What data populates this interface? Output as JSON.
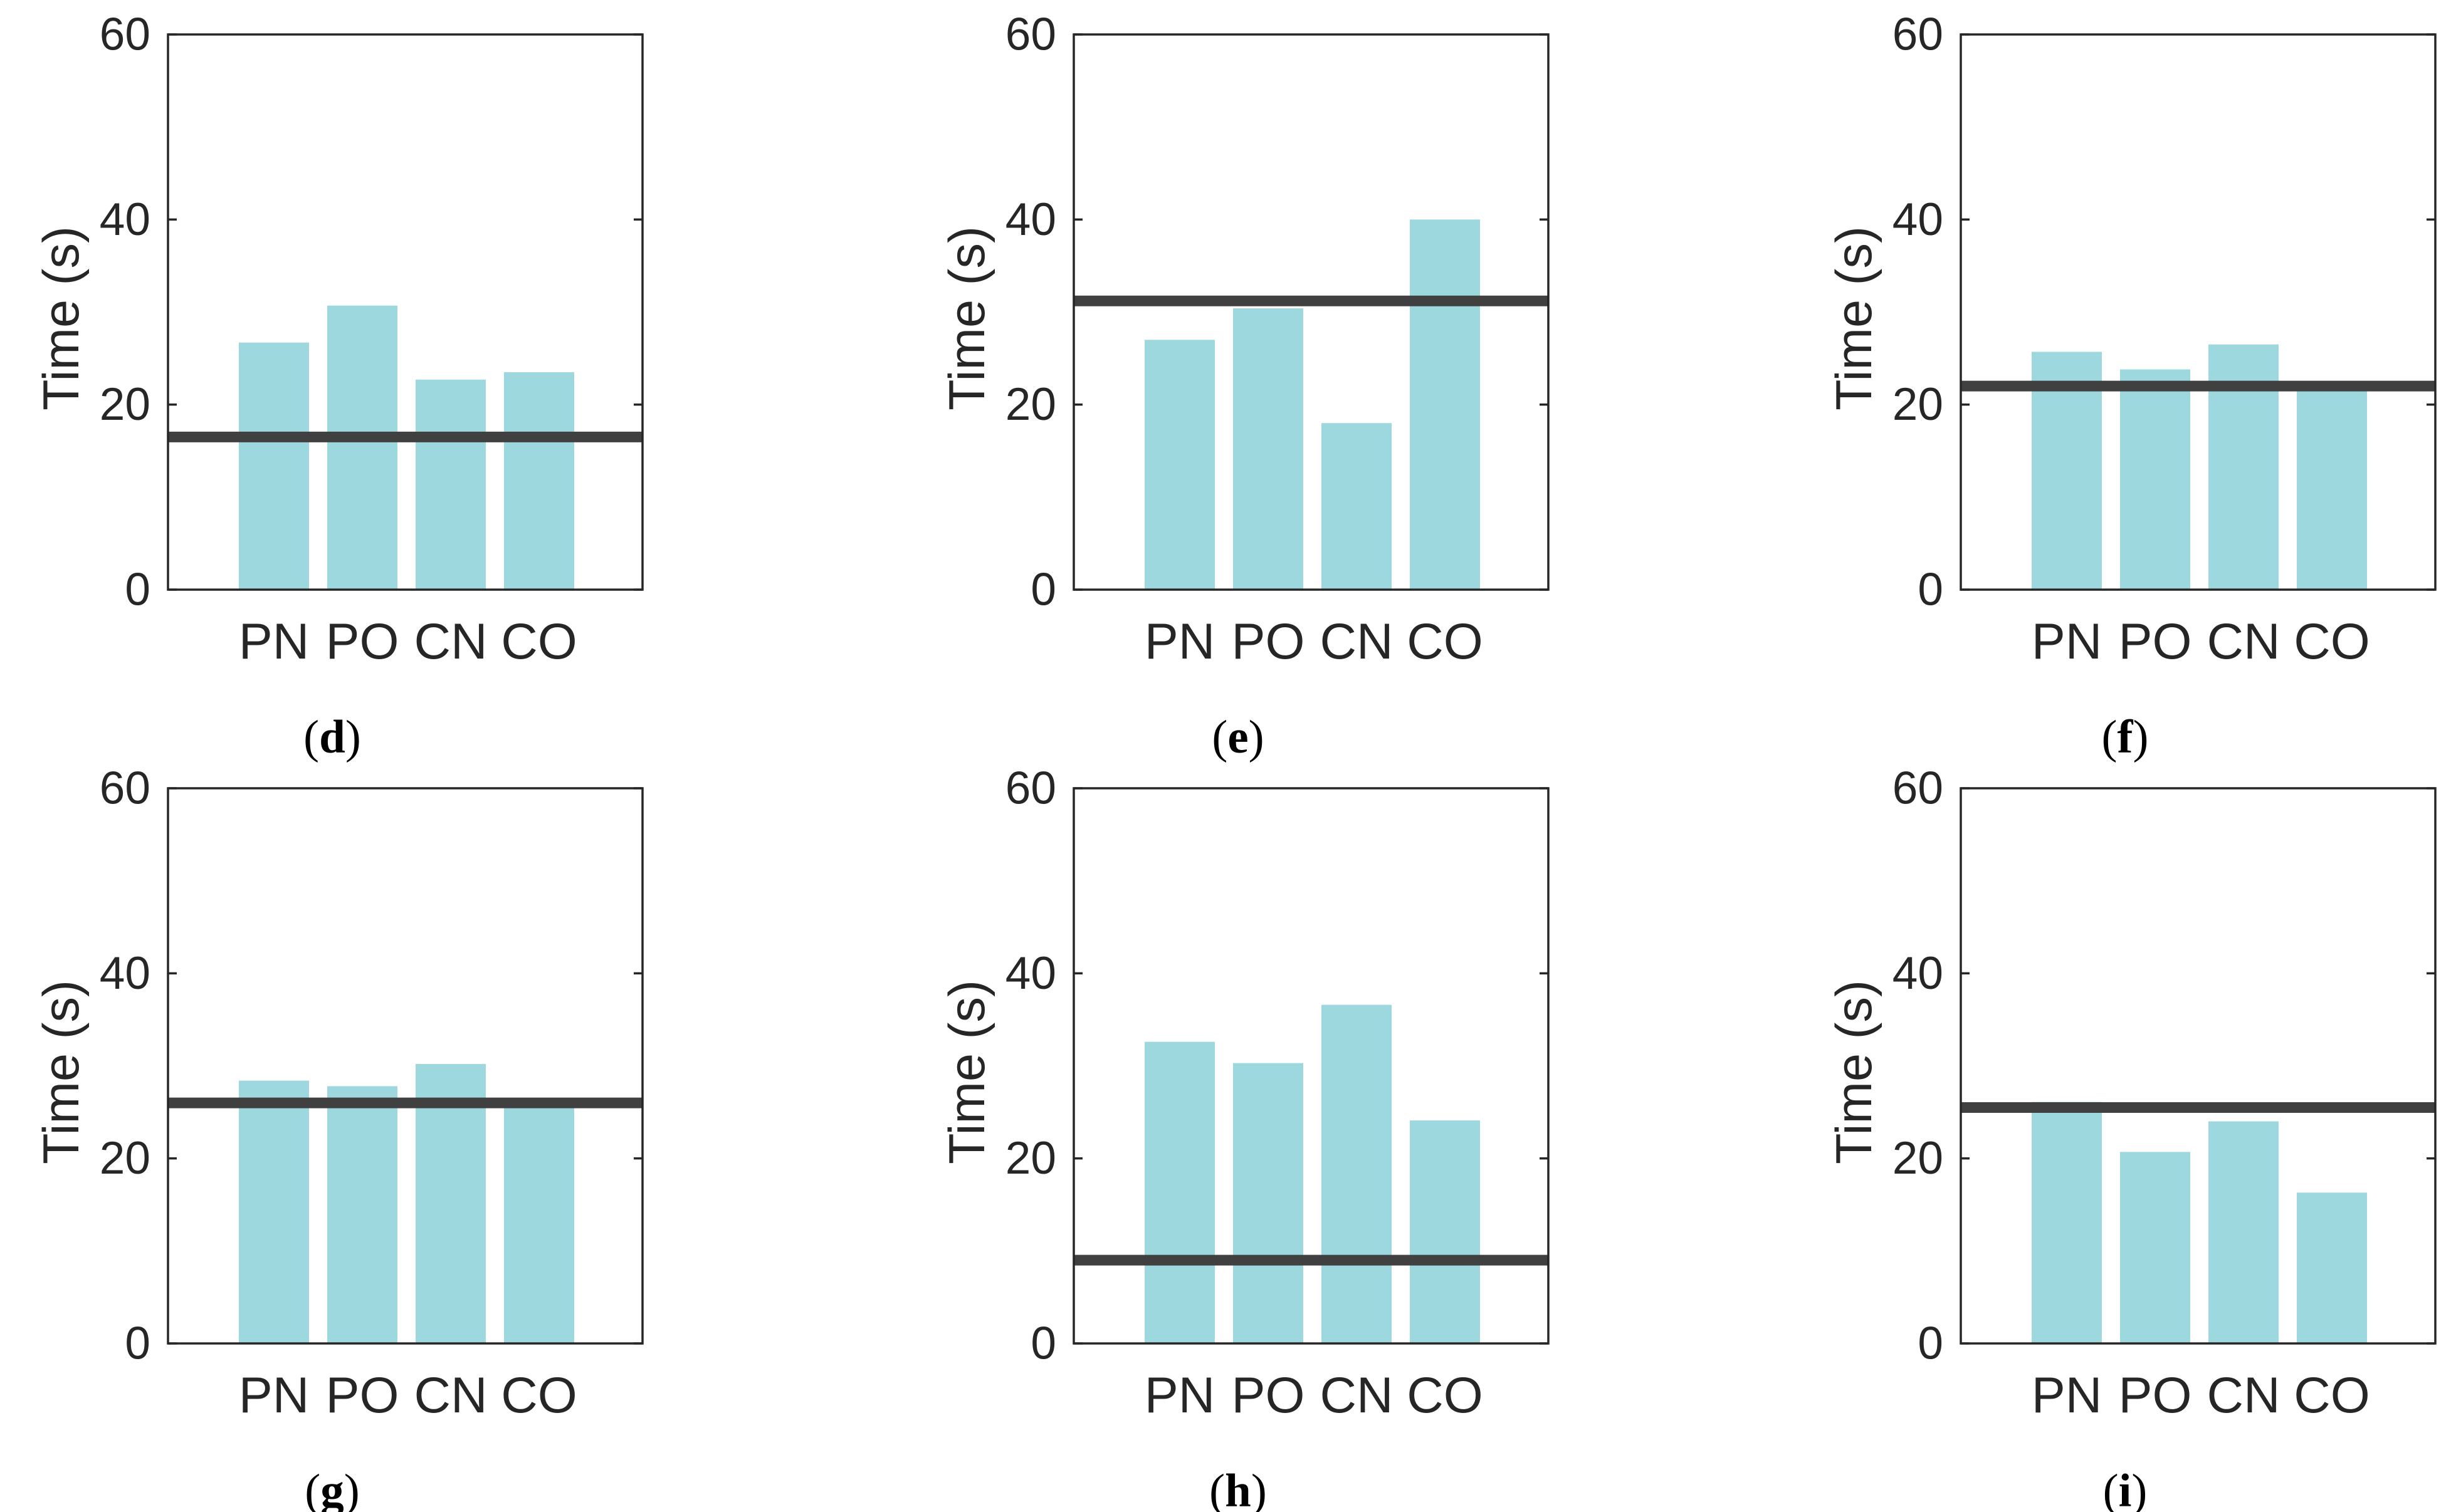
{
  "colors": {
    "bar": "#9dd8de",
    "reference_line": "#404040",
    "axes": "#262626"
  },
  "chart_data": [
    {
      "panel": "d",
      "type": "bar",
      "categories": [
        "PN",
        "PO",
        "CN",
        "CO"
      ],
      "values": [
        26.7,
        30.7,
        22.7,
        23.5
      ],
      "reference_line": 16.5,
      "ylabel": "Time (s)",
      "ylim": [
        0,
        60
      ],
      "yticks": [
        0,
        20,
        40,
        60
      ],
      "grid": false
    },
    {
      "panel": "e",
      "type": "bar",
      "categories": [
        "PN",
        "PO",
        "CN",
        "CO"
      ],
      "values": [
        27.0,
        30.4,
        18.0,
        40.0
      ],
      "reference_line": 31.2,
      "ylabel": "Time (s)",
      "ylim": [
        0,
        60
      ],
      "yticks": [
        0,
        20,
        40,
        60
      ],
      "grid": false
    },
    {
      "panel": "f",
      "type": "bar",
      "categories": [
        "PN",
        "PO",
        "CN",
        "CO"
      ],
      "values": [
        25.7,
        23.8,
        26.5,
        21.8
      ],
      "reference_line": 22.0,
      "ylabel": "Time (s)",
      "ylim": [
        0,
        60
      ],
      "yticks": [
        0,
        20,
        40,
        60
      ],
      "grid": false
    },
    {
      "panel": "g",
      "type": "bar",
      "categories": [
        "PN",
        "PO",
        "CN",
        "CO"
      ],
      "values": [
        28.4,
        27.8,
        30.2,
        26.0
      ],
      "reference_line": 26.0,
      "ylabel": "Time (s)",
      "ylim": [
        0,
        60
      ],
      "yticks": [
        0,
        20,
        40,
        60
      ],
      "grid": false
    },
    {
      "panel": "h",
      "type": "bar",
      "categories": [
        "PN",
        "PO",
        "CN",
        "CO"
      ],
      "values": [
        32.6,
        30.3,
        36.6,
        24.1
      ],
      "reference_line": 9.0,
      "ylabel": "Time (s)",
      "ylim": [
        0,
        60
      ],
      "yticks": [
        0,
        20,
        40,
        60
      ],
      "grid": false
    },
    {
      "panel": "i",
      "type": "bar",
      "categories": [
        "PN",
        "PO",
        "CN",
        "CO"
      ],
      "values": [
        26.1,
        20.7,
        24.0,
        16.3
      ],
      "reference_line": 25.5,
      "ylabel": "Time (s)",
      "ylim": [
        0,
        60
      ],
      "yticks": [
        0,
        20,
        40,
        60
      ],
      "grid": false
    }
  ]
}
